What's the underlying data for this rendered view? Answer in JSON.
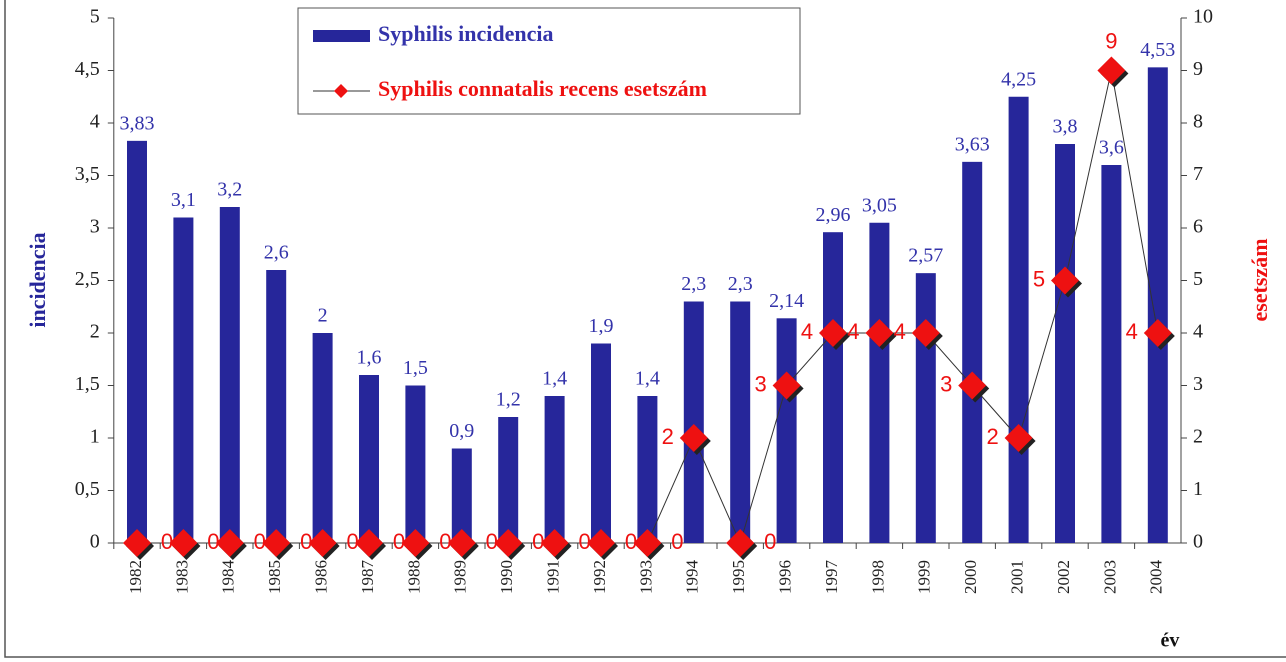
{
  "chart_data": {
    "type": "bar-line",
    "categories": [
      "1982",
      "1983",
      "1984",
      "1985",
      "1986",
      "1987",
      "1988",
      "1989",
      "1990",
      "1991",
      "1992",
      "1993",
      "1994",
      "1995",
      "1996",
      "1997",
      "1998",
      "1999",
      "2000",
      "2001",
      "2002",
      "2003",
      "2004"
    ],
    "series": [
      {
        "name": "Syphilis incidencia",
        "type": "bar",
        "color": "#26269a",
        "values": [
          3.83,
          3.1,
          3.2,
          2.6,
          2,
          1.6,
          1.5,
          0.9,
          1.2,
          1.4,
          1.9,
          1.4,
          2.3,
          2.3,
          2.14,
          2.96,
          3.05,
          2.57,
          3.63,
          4.25,
          3.8,
          3.6,
          4.53
        ],
        "value_labels": [
          "3,83",
          "3,1",
          "3,2",
          "2,6",
          "2",
          "1,6",
          "1,5",
          "0,9",
          "1,2",
          "1,4",
          "1,9",
          "1,4",
          "2,3",
          "2,3",
          "2,14",
          "2,96",
          "3,05",
          "2,57",
          "3,63",
          "4,25",
          "3,8",
          "3,6",
          "4,53"
        ]
      },
      {
        "name": "Syphilis connatalis recens esetszám",
        "type": "line",
        "axis": "y2",
        "color": "#ee1111",
        "values": [
          0,
          0,
          0,
          0,
          0,
          0,
          0,
          0,
          0,
          0,
          0,
          0,
          2,
          0,
          3,
          4,
          4,
          4,
          3,
          2,
          5,
          9,
          4
        ]
      }
    ],
    "y_label": "incidencia",
    "y2_label": "esetszám",
    "x_label": "év",
    "ylim": [
      0,
      5
    ],
    "yticks": [
      0,
      {
        "value": 0.5,
        "label": "0,5"
      },
      1,
      {
        "value": 1.5,
        "label": "1,5"
      },
      2,
      {
        "value": 2.5,
        "label": "2,5"
      },
      3,
      {
        "value": 3.5,
        "label": "3,5"
      },
      4,
      {
        "value": 4.5,
        "label": "4,5"
      },
      5
    ],
    "y2lim": [
      0,
      10
    ],
    "y2ticks": [
      0,
      1,
      2,
      3,
      4,
      5,
      6,
      7,
      8,
      9,
      10
    ],
    "legend": "top"
  }
}
